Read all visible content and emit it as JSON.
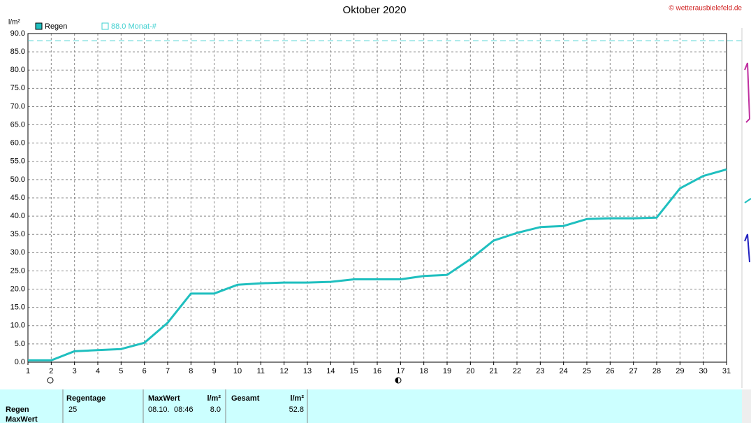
{
  "chart_data": {
    "type": "line",
    "title": "Oktober 2020",
    "copyright": "© wetterausbielefeld.de",
    "y_unit": "l/m²",
    "x": [
      1,
      2,
      3,
      4,
      5,
      6,
      7,
      8,
      9,
      10,
      11,
      12,
      13,
      14,
      15,
      16,
      17,
      18,
      19,
      20,
      21,
      22,
      23,
      24,
      25,
      26,
      27,
      28,
      29,
      30,
      31
    ],
    "series": [
      {
        "name": "Regen",
        "color": "#1fbfbf",
        "values": [
          0.5,
          0.5,
          3.0,
          3.3,
          3.6,
          5.3,
          10.8,
          18.8,
          18.8,
          21.2,
          21.6,
          21.8,
          21.8,
          22.0,
          22.7,
          22.7,
          22.7,
          23.6,
          23.9,
          28.2,
          33.3,
          35.4,
          37.0,
          37.3,
          39.2,
          39.4,
          39.4,
          39.6,
          47.6,
          51.0,
          52.8
        ]
      }
    ],
    "reference": {
      "value": 88,
      "label": "88.0 Monat-#",
      "color": "#3fd0d0"
    },
    "xlim": [
      1,
      31
    ],
    "xticks": [
      1,
      2,
      3,
      4,
      5,
      6,
      7,
      8,
      9,
      10,
      11,
      12,
      13,
      14,
      15,
      16,
      17,
      18,
      19,
      20,
      21,
      22,
      23,
      24,
      25,
      26,
      27,
      28,
      29,
      30,
      31
    ],
    "ylim": [
      0,
      90
    ],
    "yticks": [
      {
        "value": 0,
        "label": "0.0"
      },
      {
        "value": 5,
        "label": "5.0"
      },
      {
        "value": 10,
        "label": "10.0"
      },
      {
        "value": 15,
        "label": "15.0"
      },
      {
        "value": 20,
        "label": "20.0"
      },
      {
        "value": 25,
        "label": "25.0"
      },
      {
        "value": 30,
        "label": "30.0"
      },
      {
        "value": 35,
        "label": "35.0"
      },
      {
        "value": 40,
        "label": "40.0"
      },
      {
        "value": 45,
        "label": "45.0"
      },
      {
        "value": 50,
        "label": "50.0"
      },
      {
        "value": 55,
        "label": "55.0"
      },
      {
        "value": 60,
        "label": "60.0"
      },
      {
        "value": 65,
        "label": "65.0"
      },
      {
        "value": 70,
        "label": "70.0"
      },
      {
        "value": 75,
        "label": "75.0"
      },
      {
        "value": 80,
        "label": "80.0"
      },
      {
        "value": 85,
        "label": "85.0"
      },
      {
        "value": 90,
        "label": "90.0"
      }
    ],
    "grid": true
  },
  "table": {
    "headers": [
      "Regentage",
      "MaxWert",
      "l/m²",
      "Gesamt",
      "l/m²"
    ],
    "row_labels": [
      "Regen",
      "MaxWert"
    ],
    "values": [
      "25",
      "08.10.",
      "08:46",
      "8.0",
      "52.8"
    ]
  }
}
